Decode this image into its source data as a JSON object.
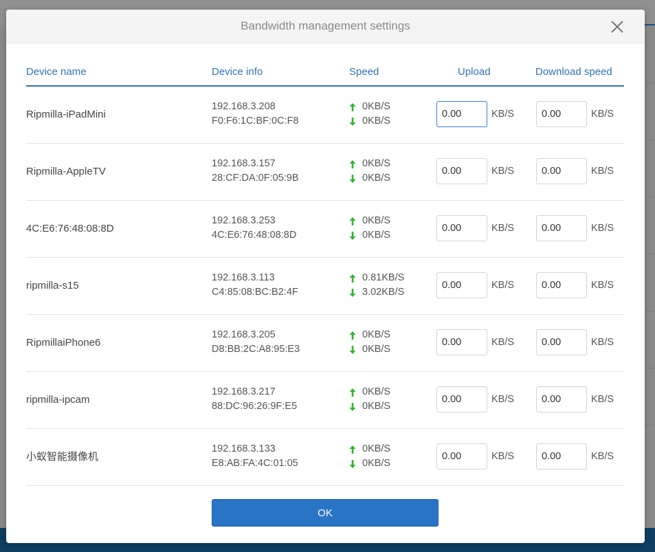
{
  "dialog": {
    "title": "Bandwidth management settings",
    "ok_label": "OK"
  },
  "table": {
    "headers": {
      "device_name": "Device name",
      "device_info": "Device info",
      "speed": "Speed",
      "upload": "Upload",
      "download": "Download speed"
    },
    "unit": "KB/S",
    "rows": [
      {
        "name": "Ripmilla-iPadMini",
        "ip": "192.168.3.208",
        "mac": "F0:F6:1C:BF:0C:F8",
        "up_speed": "0KB/S",
        "down_speed": "0KB/S",
        "upload_value": "0.00",
        "download_value": "0.00"
      },
      {
        "name": "Ripmilla-AppleTV",
        "ip": "192.168.3.157",
        "mac": "28:CF:DA:0F:05:9B",
        "up_speed": "0KB/S",
        "down_speed": "0KB/S",
        "upload_value": "0.00",
        "download_value": "0.00"
      },
      {
        "name": "4C:E6:76:48:08:8D",
        "ip": "192.168.3.253",
        "mac": "4C:E6:76:48:08:8D",
        "up_speed": "0KB/S",
        "down_speed": "0KB/S",
        "upload_value": "0.00",
        "download_value": "0.00"
      },
      {
        "name": "ripmilla-s15",
        "ip": "192.168.3.113",
        "mac": "C4:85:08:BC:B2:4F",
        "up_speed": "0.81KB/S",
        "down_speed": "3.02KB/S",
        "upload_value": "0.00",
        "download_value": "0.00"
      },
      {
        "name": "RipmillaiPhone6",
        "ip": "192.168.3.205",
        "mac": "D8:BB:2C:A8:95:E3",
        "up_speed": "0KB/S",
        "down_speed": "0KB/S",
        "upload_value": "0.00",
        "download_value": "0.00"
      },
      {
        "name": "ripmilla-ipcam",
        "ip": "192.168.3.217",
        "mac": "88:DC:96:26:9F:E5",
        "up_speed": "0KB/S",
        "down_speed": "0KB/S",
        "upload_value": "0.00",
        "download_value": "0.00"
      },
      {
        "name": "小蚁智能摄像机",
        "ip": "192.168.3.133",
        "mac": "E8:AB:FA:4C:01:05",
        "up_speed": "0KB/S",
        "down_speed": "0KB/S",
        "upload_value": "0.00",
        "download_value": "0.00"
      }
    ]
  },
  "icons": {
    "close": "close-icon",
    "upload_arrow": "arrow-up-icon",
    "download_arrow": "arrow-down-icon"
  },
  "colors": {
    "accent": "#2a74c6",
    "header_text": "#2f74b5",
    "arrow_green": "#2db52d"
  }
}
